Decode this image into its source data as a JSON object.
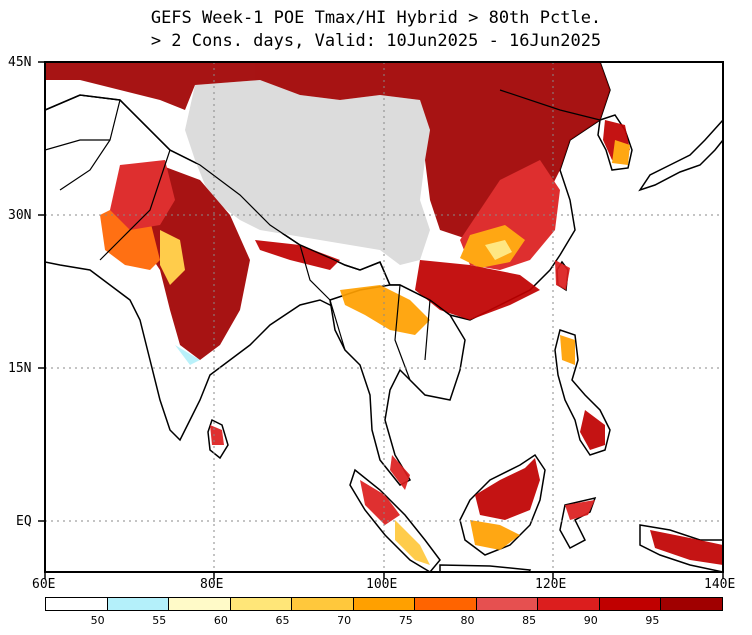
{
  "title": {
    "line1": "GEFS Week-1 POE Tmax/HI Hybrid > 80th Pctle.",
    "line2": "> 2 Cons. days, Valid: 10Jun2025 - 16Jun2025"
  },
  "map": {
    "lon_range": [
      60,
      140
    ],
    "lat_range": [
      -6,
      45
    ],
    "lat_labels": [
      "45N",
      "30N",
      "15N",
      "EQ"
    ],
    "lon_labels": [
      "60E",
      "80E",
      "100E",
      "120E",
      "140E"
    ]
  },
  "colorbar": {
    "labels": [
      "50",
      "55",
      "60",
      "65",
      "70",
      "75",
      "80",
      "85",
      "90",
      "95"
    ],
    "colors": [
      "#ffffff",
      "#b4f0fa",
      "#fffac8",
      "#ffe678",
      "#ffc83c",
      "#ffa000",
      "#ff6400",
      "#e65050",
      "#dc1e1e",
      "#c00000",
      "#a00000"
    ]
  },
  "fills": {
    "missing": "#dcdcdc",
    "land_outline": "#000000"
  }
}
